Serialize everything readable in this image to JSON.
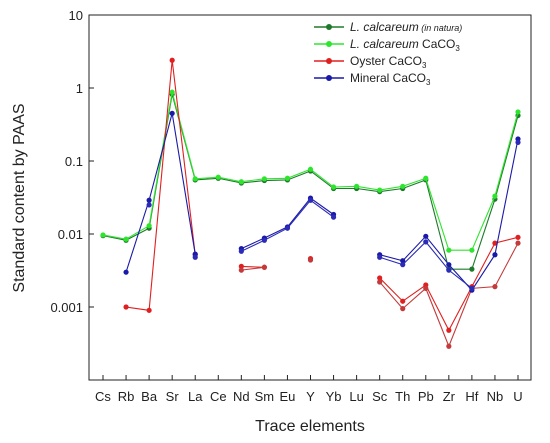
{
  "chart_data": {
    "type": "line",
    "xlabel": "Trace elements",
    "ylabel": "Standard content by PAAS",
    "yscale": "log",
    "ylim": [
      0.0001,
      10
    ],
    "y_tick_labels": [
      "0.001",
      "0.01",
      "0.1",
      "1",
      "10"
    ],
    "y_tick_values": [
      0.001,
      0.01,
      0.1,
      1,
      10
    ],
    "categories": [
      "Cs",
      "Rb",
      "Ba",
      "Sr",
      "La",
      "Ce",
      "Nd",
      "Sm",
      "Eu",
      "Y",
      "Yb",
      "Lu",
      "Sc",
      "Th",
      "Pb",
      "Zr",
      "Hf",
      "Nb",
      "U"
    ],
    "legend_position": "top-right",
    "series": [
      {
        "name": "L. calcareum (in natura)",
        "legend": {
          "italic": "L. calcareum",
          "small": " (in natura)",
          "rest": "",
          "sub": ""
        },
        "color": "#1e7a2a",
        "values": [
          0.0095,
          0.0082,
          0.012,
          0.82,
          0.055,
          0.058,
          0.05,
          0.054,
          0.055,
          0.073,
          0.042,
          0.042,
          0.038,
          0.042,
          0.055,
          0.0033,
          0.0033,
          0.03,
          0.42
        ]
      },
      {
        "name": "L. calcareum CaCO3",
        "legend": {
          "italic": "L. calcareum",
          "small": "",
          "rest": " CaCO",
          "sub": "3"
        },
        "color": "#2ee52e",
        "values": [
          0.0097,
          0.0085,
          0.013,
          0.88,
          0.057,
          0.06,
          0.052,
          0.057,
          0.058,
          0.077,
          0.044,
          0.045,
          0.04,
          0.045,
          0.058,
          0.006,
          0.006,
          0.033,
          0.47
        ]
      },
      {
        "name": "Oyster CaCO3",
        "legend": {
          "italic": "",
          "small": "",
          "rest": "Oyster CaCO",
          "sub": "3"
        },
        "color": "#e02020",
        "values": [
          null,
          0.001,
          0.0009,
          2.4,
          0.0052,
          null,
          0.0036,
          0.0035,
          null,
          0.0046,
          null,
          null,
          0.0025,
          0.0012,
          0.002,
          0.00048,
          0.0019,
          0.0075,
          0.009
        ]
      },
      {
        "name": "Oyster CaCO3",
        "legend": null,
        "color": "#c43a3a",
        "values": [
          null,
          null,
          null,
          null,
          null,
          null,
          0.0032,
          0.0035,
          null,
          0.0044,
          null,
          null,
          0.0022,
          0.00095,
          0.0018,
          0.00029,
          0.0018,
          0.0019,
          0.0075
        ]
      },
      {
        "name": "Mineral CaCO3",
        "legend": {
          "italic": "",
          "small": "",
          "rest": "Mineral CaCO",
          "sub": "3"
        },
        "color": "#1a1aa8",
        "values": [
          null,
          0.003,
          0.029,
          0.45,
          0.0053,
          null,
          0.0063,
          0.0088,
          0.0125,
          0.031,
          0.0185,
          null,
          0.0052,
          0.0043,
          0.0093,
          0.0038,
          0.0017,
          0.0052,
          0.2
        ]
      },
      {
        "name": "Mineral CaCO3",
        "legend": null,
        "color": "#2b2bb8",
        "values": [
          null,
          null,
          0.025,
          null,
          0.0048,
          null,
          0.0058,
          0.0082,
          0.012,
          0.029,
          0.017,
          null,
          0.0048,
          0.0038,
          0.0078,
          0.0032,
          0.0018,
          null,
          0.18
        ]
      }
    ]
  }
}
